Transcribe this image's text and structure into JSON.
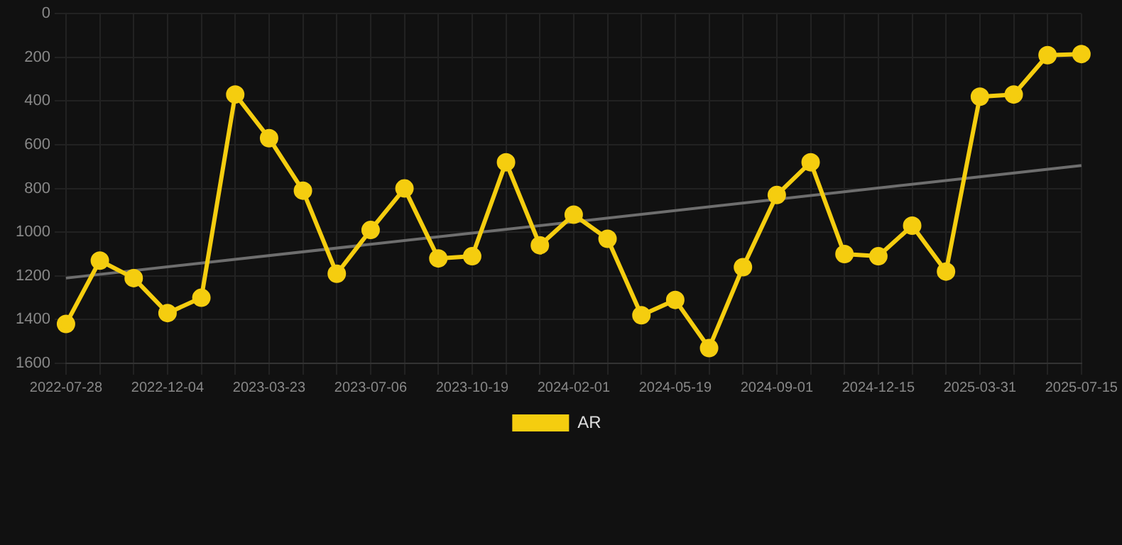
{
  "chart_data": {
    "type": "line",
    "categories": [
      "2022-07-28",
      null,
      null,
      "2022-12-04",
      null,
      null,
      "2023-03-23",
      null,
      null,
      "2023-07-06",
      null,
      null,
      "2023-10-19",
      null,
      null,
      "2024-02-01",
      null,
      null,
      "2024-05-19",
      null,
      null,
      "2024-09-01",
      null,
      null,
      "2024-12-15",
      null,
      null,
      "2025-03-31",
      null,
      null,
      "2025-07-15"
    ],
    "series": [
      {
        "name": "AR",
        "color": "#f5cd0f",
        "marker": "circle",
        "values": [
          1420,
          1130,
          1210,
          1370,
          1300,
          370,
          570,
          810,
          1190,
          990,
          800,
          1120,
          1110,
          680,
          1060,
          920,
          1030,
          1380,
          1310,
          1530,
          1160,
          830,
          680,
          1100,
          1110,
          970,
          1180,
          380,
          370,
          190,
          185
        ]
      },
      {
        "type": "line",
        "color": "#6e6e6e",
        "marker": "none",
        "values": [
          1210,
          null,
          null,
          null,
          null,
          null,
          null,
          null,
          null,
          null,
          null,
          null,
          null,
          null,
          null,
          null,
          null,
          null,
          null,
          null,
          null,
          null,
          null,
          null,
          null,
          null,
          null,
          null,
          null,
          null,
          695
        ]
      }
    ],
    "ylim": [
      1600,
      0
    ],
    "yticks": [
      0,
      200,
      400,
      600,
      800,
      1000,
      1200,
      1400,
      1600
    ],
    "grid": true,
    "legend": "bottom"
  }
}
